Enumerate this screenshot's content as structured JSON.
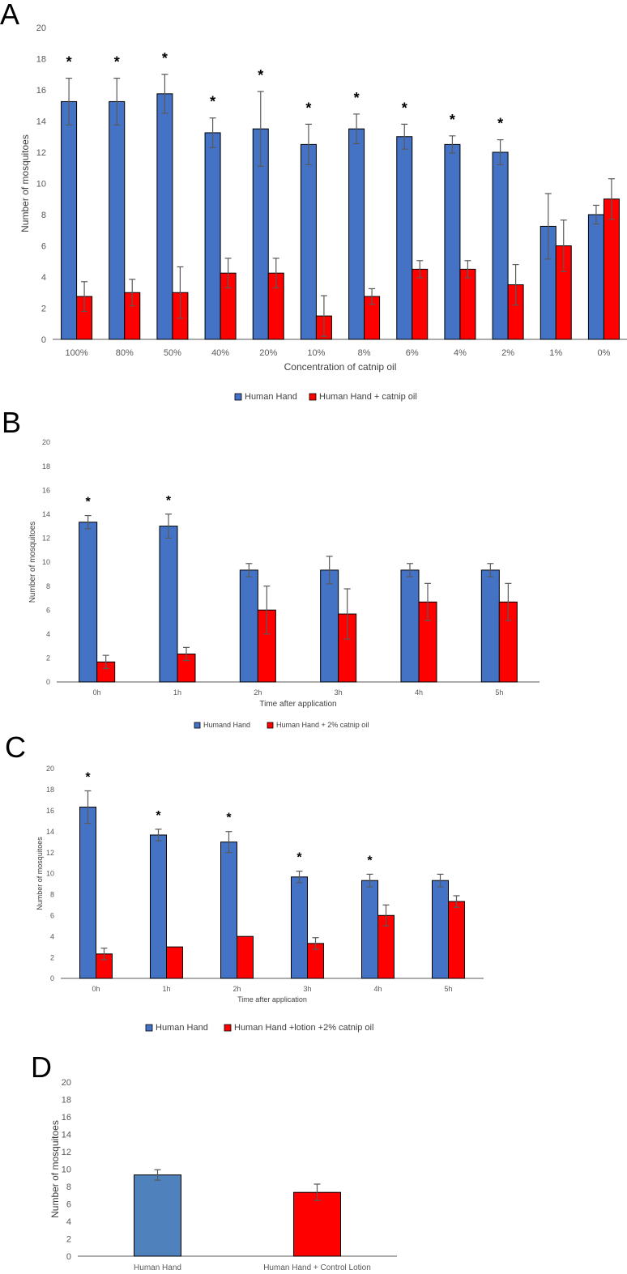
{
  "colors": {
    "blue": "#4472C4",
    "blue_d": "#4F81BD",
    "red": "#FF0000",
    "bar_border": "#000000",
    "axis": "#595959",
    "error_bar": "#595959"
  },
  "chart_data": [
    {
      "panel": "A",
      "type": "bar",
      "title": "",
      "xlabel": "Concentration of catnip oil",
      "ylabel": "Number of mosquitoes",
      "ylim": [
        0,
        20
      ],
      "yticks": [
        0,
        2,
        4,
        6,
        8,
        10,
        12,
        14,
        16,
        18,
        20
      ],
      "categories": [
        "100%",
        "80%",
        "50%",
        "40%",
        "20%",
        "10%",
        "8%",
        "6%",
        "4%",
        "2%",
        "1%",
        "0%"
      ],
      "series": [
        {
          "name": "Human Hand",
          "color_key": "blue",
          "values": [
            15.25,
            15.25,
            15.75,
            13.25,
            13.5,
            12.5,
            13.5,
            13.0,
            12.5,
            12.0,
            7.25,
            8.0
          ],
          "errors": [
            1.5,
            1.5,
            1.25,
            0.95,
            2.4,
            1.3,
            0.95,
            0.8,
            0.55,
            0.8,
            2.1,
            0.6
          ]
        },
        {
          "name": "Human Hand + catnip oil",
          "color_key": "red",
          "values": [
            2.75,
            3.0,
            3.0,
            4.25,
            4.25,
            1.5,
            2.75,
            4.5,
            4.5,
            3.5,
            6.0,
            9.0
          ],
          "errors": [
            0.95,
            0.85,
            1.65,
            0.95,
            0.95,
            1.3,
            0.5,
            0.55,
            0.55,
            1.3,
            1.65,
            1.3
          ]
        }
      ],
      "significance": [
        "*",
        "*",
        "*",
        "*",
        "*",
        "*",
        "*",
        "*",
        "*",
        "*",
        "",
        ""
      ],
      "legend_position": "bottom-center"
    },
    {
      "panel": "B",
      "type": "bar",
      "title": "",
      "xlabel": "Time after application",
      "ylabel": "Number of mosquitoes",
      "ylim": [
        0,
        20
      ],
      "yticks": [
        0,
        2,
        4,
        6,
        8,
        10,
        12,
        14,
        16,
        18,
        20
      ],
      "categories": [
        "0h",
        "1h",
        "2h",
        "3h",
        "4h",
        "5h"
      ],
      "series": [
        {
          "name": "Humand Hand",
          "color_key": "blue",
          "values": [
            13.33,
            13.0,
            9.33,
            9.33,
            9.33,
            9.33
          ],
          "errors": [
            0.55,
            1.0,
            0.55,
            1.15,
            0.55,
            0.55
          ]
        },
        {
          "name": "Human Hand + 2% catnip oil",
          "color_key": "red",
          "values": [
            1.67,
            2.33,
            6.0,
            5.67,
            6.67,
            6.67
          ],
          "errors": [
            0.55,
            0.55,
            2.0,
            2.1,
            1.55,
            1.55
          ]
        }
      ],
      "significance": [
        "*",
        "*",
        "",
        "",
        "",
        ""
      ],
      "legend_position": "bottom-center"
    },
    {
      "panel": "C",
      "type": "bar",
      "title": "",
      "xlabel": "Time after application",
      "ylabel": "Number of mosquitoes",
      "ylim": [
        0,
        20
      ],
      "yticks": [
        0,
        2,
        4,
        6,
        8,
        10,
        12,
        14,
        16,
        18,
        20
      ],
      "categories": [
        "0h",
        "1h",
        "2h",
        "3h",
        "4h",
        "5h"
      ],
      "series": [
        {
          "name": "Human Hand",
          "color_key": "blue",
          "values": [
            16.33,
            13.67,
            13.0,
            9.67,
            9.33,
            9.33
          ],
          "errors": [
            1.55,
            0.55,
            1.0,
            0.55,
            0.6,
            0.6
          ]
        },
        {
          "name": "Human Hand +lotion +2% catnip oil",
          "color_key": "red",
          "values": [
            2.33,
            3.0,
            4.0,
            3.33,
            6.0,
            7.33
          ],
          "errors": [
            0.55,
            0,
            0,
            0.55,
            1.0,
            0.55
          ]
        }
      ],
      "significance": [
        "*",
        "*",
        "*",
        "*",
        "*",
        ""
      ],
      "legend_position": "bottom-center"
    },
    {
      "panel": "D",
      "type": "bar",
      "title": "",
      "xlabel": "",
      "ylabel": "Number of mosquitoes",
      "ylim": [
        0,
        20
      ],
      "yticks": [
        0,
        2,
        4,
        6,
        8,
        10,
        12,
        14,
        16,
        18,
        20
      ],
      "categories": [
        "Human Hand",
        "Human Hand + Control Lotion"
      ],
      "bars": [
        {
          "label": "Human Hand",
          "value": 9.33,
          "error": 0.6,
          "color_key": "blue_d"
        },
        {
          "label": "Human Hand + Control Lotion",
          "value": 7.33,
          "error": 0.95,
          "color_key": "red"
        }
      ]
    }
  ]
}
